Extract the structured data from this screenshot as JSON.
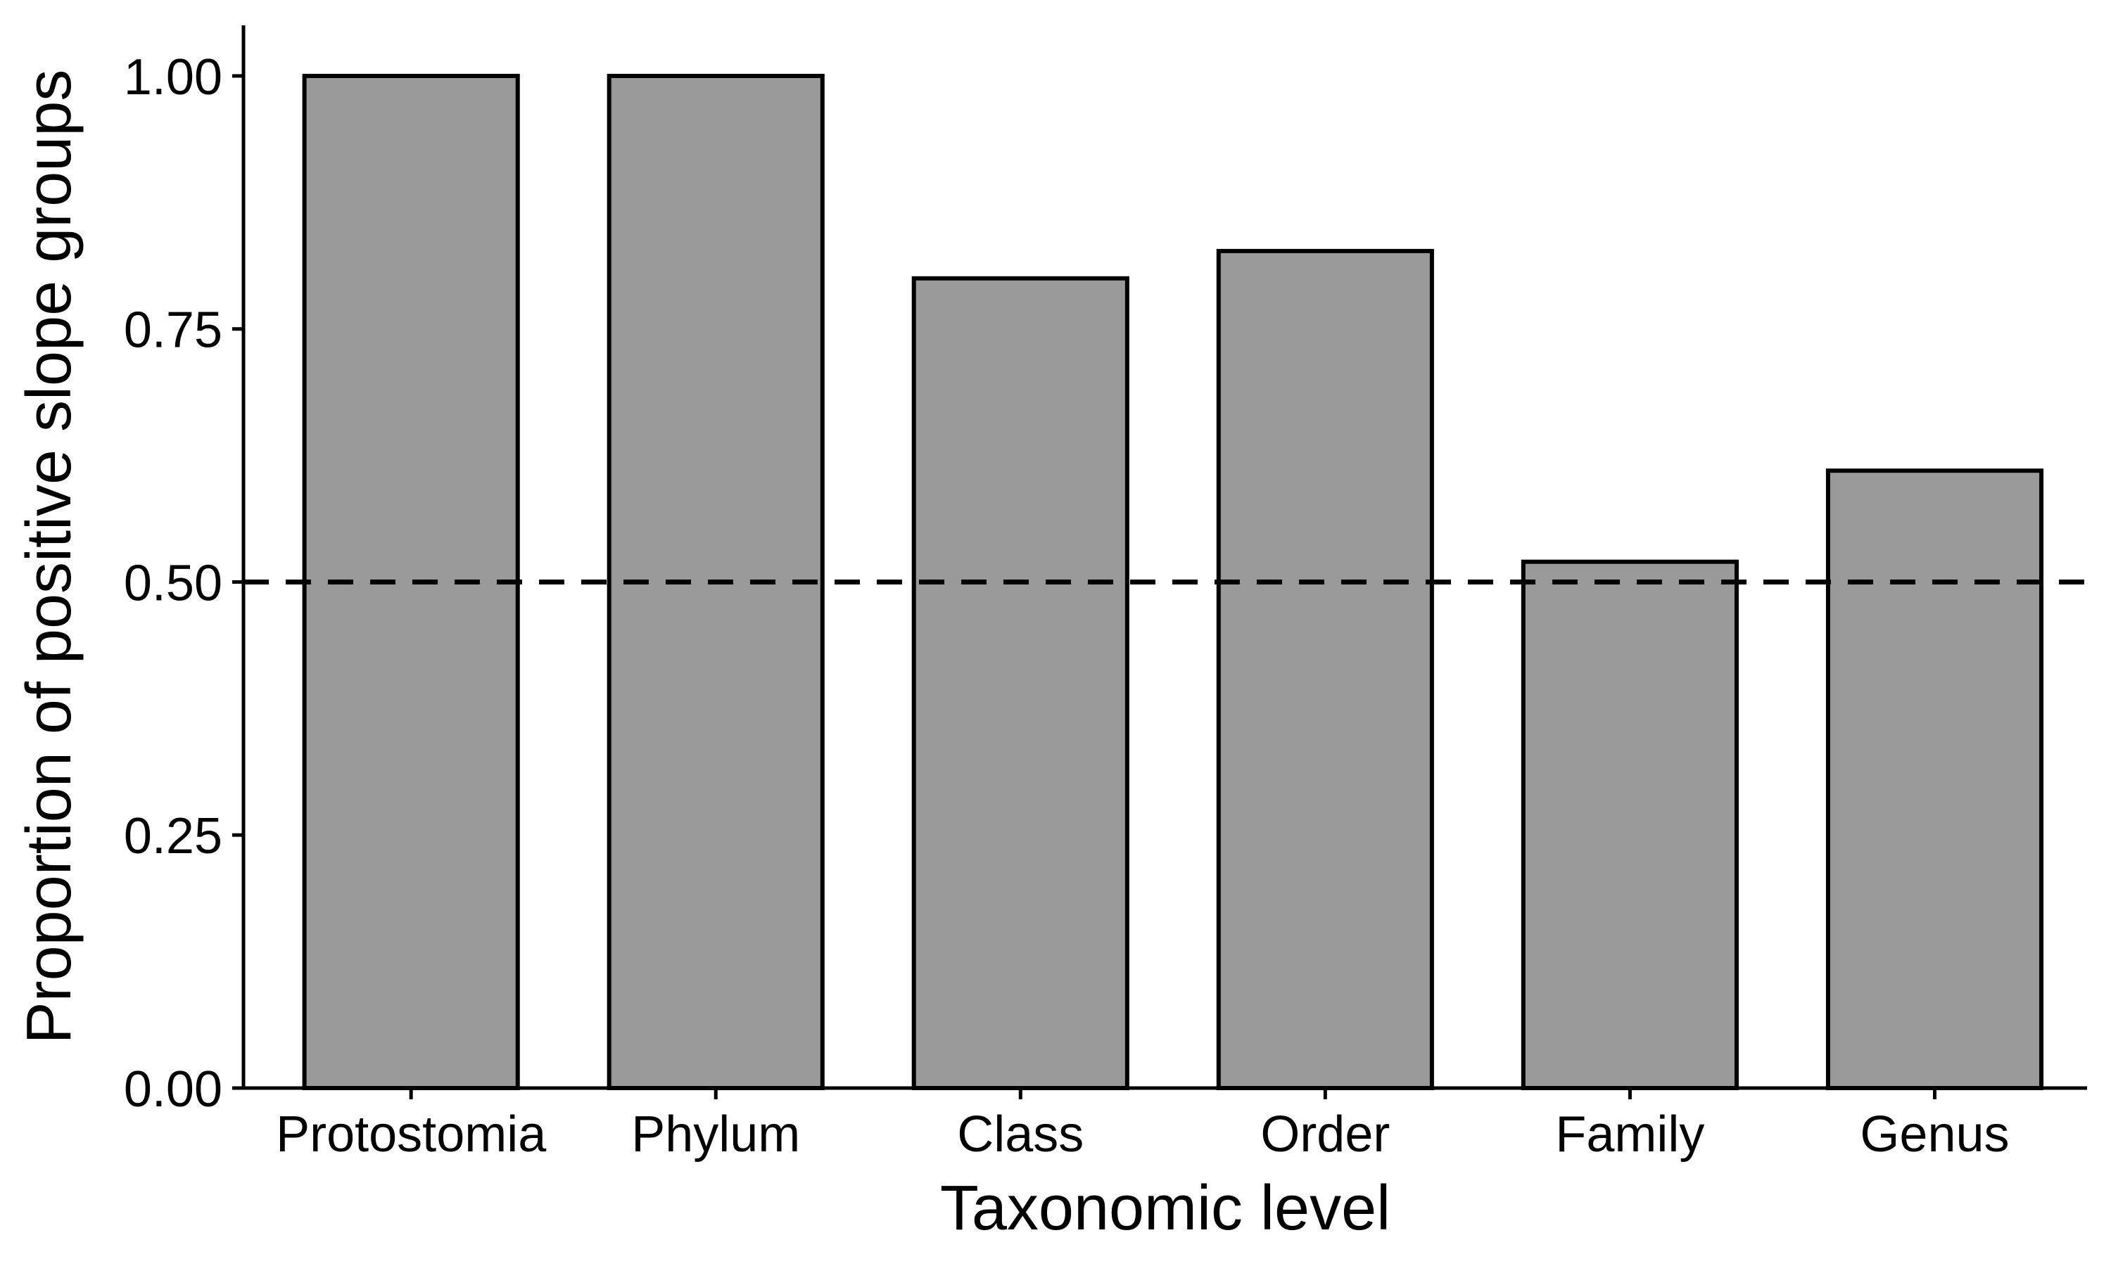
{
  "chart_data": {
    "type": "bar",
    "title": "",
    "xlabel": "Taxonomic level",
    "ylabel": "Proportion of positive slope groups",
    "categories": [
      "Protostomia",
      "Phylum",
      "Class",
      "Order",
      "Family",
      "Genus"
    ],
    "values": [
      1.0,
      1.0,
      0.8,
      0.827,
      0.52,
      0.61
    ],
    "ylim": [
      0,
      1.05
    ],
    "yticks": [
      "0.00",
      "0.25",
      "0.50",
      "0.75",
      "1.00"
    ],
    "reference_line": {
      "y": 0.5,
      "style": "dashed"
    },
    "grid": false,
    "legend": "none",
    "colors": {
      "bar_fill": "#999999",
      "bar_stroke": "#000000",
      "axis": "#000000",
      "reference_line": "#000000"
    }
  }
}
